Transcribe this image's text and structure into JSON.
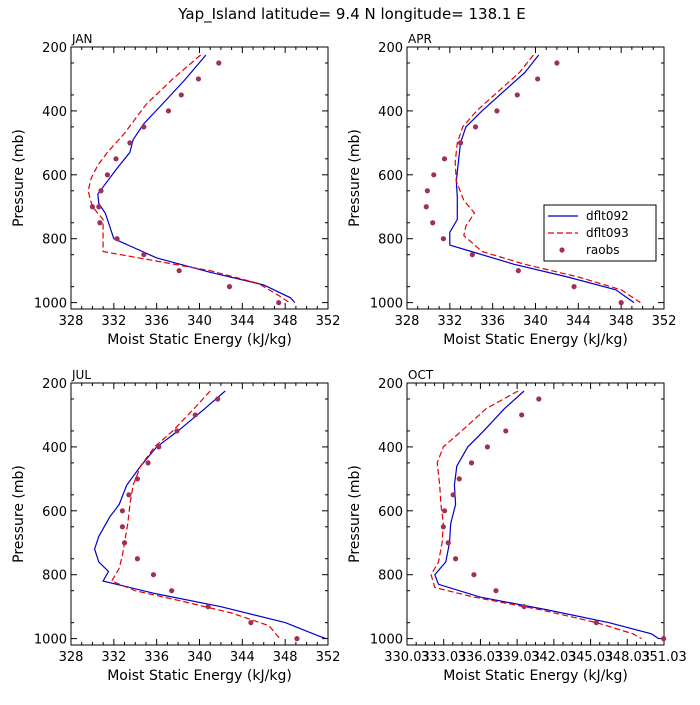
{
  "suptitle": "Yap_Island   latitude= 9.4 N longitude= 138.1 E",
  "legend": [
    {
      "label": "dflt092",
      "color": "#0000cc",
      "style": "solid"
    },
    {
      "label": "dflt093",
      "color": "#e60000",
      "style": "dashed"
    },
    {
      "label": "raobs",
      "color": "#a0305a",
      "style": "dot"
    }
  ],
  "chart_data": [
    {
      "type": "line",
      "title": "JAN",
      "xlabel": "Moist Static Energy (kJ/kg)",
      "ylabel": "Pressure (mb)",
      "xlim": [
        328,
        352
      ],
      "ylim": [
        200,
        1020
      ],
      "y_inverted": true,
      "xticks": [
        328,
        332,
        336,
        340,
        344,
        348,
        352
      ],
      "xtick_labels": [
        "328",
        "332",
        "336",
        "340",
        "344",
        "348",
        "352"
      ],
      "yticks": [
        200,
        400,
        600,
        800,
        1000
      ],
      "ytick_labels": [
        "200",
        "400",
        "600",
        "800",
        "1000"
      ],
      "series": [
        {
          "name": "dflt092",
          "x": [
            340.6,
            338.7,
            336.5,
            334.8,
            333.8,
            333.5,
            332.3,
            331.4,
            330.5,
            330.6,
            331.2,
            332.0,
            336.0,
            341.0,
            346.0,
            348.5,
            348.9
          ],
          "y": [
            225,
            300,
            380,
            440,
            490,
            530,
            580,
            620,
            660,
            690,
            720,
            800,
            860,
            905,
            945,
            985,
            1000
          ]
        },
        {
          "name": "dflt093",
          "x": [
            340.1,
            337.5,
            335.0,
            333.0,
            331.4,
            330.5,
            329.9,
            329.6,
            330.0,
            331.0,
            331.0,
            331.0,
            336.0,
            341.0,
            345.5,
            347.5,
            348.4
          ],
          "y": [
            225,
            300,
            380,
            470,
            530,
            570,
            610,
            650,
            700,
            740,
            770,
            840,
            870,
            900,
            940,
            980,
            1000
          ]
        },
        {
          "name": "raobs",
          "x": [
            341.8,
            339.9,
            338.3,
            337.1,
            334.8,
            333.5,
            332.2,
            331.4,
            330.8,
            330.6,
            330.0,
            330.7,
            332.3,
            334.8,
            338.1,
            342.8,
            347.4
          ],
          "y": [
            250,
            300,
            350,
            400,
            450,
            500,
            550,
            600,
            650,
            700,
            700,
            750,
            800,
            850,
            900,
            950,
            1000
          ]
        }
      ]
    },
    {
      "type": "line",
      "title": "APR",
      "xlabel": "Moist Static Energy (kJ/kg)",
      "ylabel": "Pressure (mb)",
      "xlim": [
        328,
        352
      ],
      "ylim": [
        200,
        1020
      ],
      "y_inverted": true,
      "xticks": [
        328,
        332,
        336,
        340,
        344,
        348,
        352
      ],
      "xtick_labels": [
        "328",
        "332",
        "336",
        "340",
        "344",
        "348",
        "352"
      ],
      "yticks": [
        200,
        400,
        600,
        800,
        1000
      ],
      "ytick_labels": [
        "200",
        "400",
        "600",
        "800",
        "1000"
      ],
      "series": [
        {
          "name": "dflt092",
          "x": [
            340.3,
            339.0,
            337.0,
            335.0,
            333.5,
            333.0,
            332.8,
            332.6,
            332.7,
            332.7,
            332.0,
            332.0,
            334.0,
            338.0,
            343.0,
            347.5,
            349.2
          ],
          "y": [
            225,
            280,
            340,
            400,
            450,
            500,
            560,
            620,
            670,
            740,
            780,
            820,
            840,
            880,
            920,
            960,
            1000
          ]
        },
        {
          "name": "dflt093",
          "x": [
            339.8,
            338.5,
            336.5,
            334.5,
            333.2,
            332.7,
            332.5,
            332.6,
            333.3,
            334.3,
            333.5,
            333.3,
            335.0,
            339.0,
            344.0,
            348.0,
            349.8
          ],
          "y": [
            225,
            280,
            340,
            400,
            450,
            500,
            560,
            620,
            680,
            720,
            760,
            790,
            840,
            880,
            920,
            960,
            1000
          ]
        },
        {
          "name": "raobs",
          "x": [
            342.0,
            340.2,
            338.3,
            336.4,
            334.4,
            333.0,
            331.5,
            330.5,
            329.9,
            329.8,
            330.4,
            331.4,
            334.1,
            338.4,
            343.6,
            348.0
          ],
          "y": [
            250,
            300,
            350,
            400,
            450,
            500,
            550,
            600,
            650,
            700,
            750,
            800,
            850,
            900,
            950,
            1000
          ]
        }
      ]
    },
    {
      "type": "line",
      "title": "JUL",
      "xlabel": "Moist Static Energy (kJ/kg)",
      "ylabel": "Pressure (mb)",
      "xlim": [
        328,
        352
      ],
      "ylim": [
        200,
        1020
      ],
      "y_inverted": true,
      "xticks": [
        328,
        332,
        336,
        340,
        344,
        348,
        352
      ],
      "xtick_labels": [
        "328",
        "332",
        "336",
        "340",
        "344",
        "348",
        "352"
      ],
      "yticks": [
        200,
        400,
        600,
        800,
        1000
      ],
      "ytick_labels": [
        "200",
        "400",
        "600",
        "800",
        "1000"
      ],
      "series": [
        {
          "name": "dflt092",
          "x": [
            342.4,
            340.5,
            338.0,
            336.0,
            334.5,
            333.2,
            332.5,
            331.6,
            330.6,
            330.2,
            330.6,
            331.5,
            331.0,
            336.0,
            342.0,
            348.0,
            351.0,
            351.8
          ],
          "y": [
            225,
            280,
            350,
            400,
            460,
            520,
            580,
            620,
            680,
            720,
            760,
            790,
            820,
            860,
            900,
            950,
            990,
            1000
          ]
        },
        {
          "name": "dflt093",
          "x": [
            341.0,
            339.5,
            337.5,
            335.8,
            334.5,
            333.8,
            333.5,
            333.3,
            333.0,
            332.8,
            332.5,
            331.8,
            334.0,
            338.0,
            343.0,
            346.5,
            347.5
          ],
          "y": [
            225,
            280,
            350,
            400,
            460,
            520,
            580,
            640,
            700,
            740,
            780,
            820,
            850,
            880,
            920,
            960,
            1000
          ]
        },
        {
          "name": "raobs",
          "x": [
            341.7,
            339.6,
            337.9,
            336.2,
            335.2,
            334.2,
            333.4,
            332.8,
            332.8,
            333.0,
            334.2,
            335.7,
            337.4,
            340.8,
            344.8,
            349.1
          ],
          "y": [
            250,
            300,
            350,
            400,
            450,
            500,
            550,
            600,
            650,
            700,
            750,
            800,
            850,
            900,
            950,
            1000
          ]
        }
      ]
    },
    {
      "type": "line",
      "title": "OCT",
      "xlabel": "Moist Static Energy (kJ/kg)",
      "ylabel": "Pressure (mb)",
      "xlim": [
        330.03,
        351.03
      ],
      "ylim": [
        200,
        1020
      ],
      "y_inverted": true,
      "xticks": [
        330.03,
        333.03,
        336.03,
        339.03,
        342.03,
        345.03,
        348.03,
        351.03
      ],
      "xtick_labels": [
        "330.03",
        "333.03",
        "336.03",
        "339.03",
        "342.03",
        "345.03",
        "348.03",
        "351.03"
      ],
      "yticks": [
        200,
        400,
        600,
        800,
        1000
      ],
      "ytick_labels": [
        "200",
        "400",
        "600",
        "800",
        "1000"
      ],
      "series": [
        {
          "name": "dflt092",
          "x": [
            339.6,
            338.0,
            336.3,
            335.0,
            334.1,
            333.9,
            334.0,
            333.6,
            333.5,
            333.2,
            332.3,
            332.6,
            336.0,
            341.5,
            346.5,
            350.0,
            350.6
          ],
          "y": [
            225,
            280,
            350,
            400,
            460,
            520,
            580,
            640,
            700,
            760,
            800,
            830,
            870,
            910,
            950,
            985,
            1000
          ]
        },
        {
          "name": "dflt093",
          "x": [
            339.1,
            336.5,
            334.5,
            333.0,
            332.5,
            332.7,
            332.8,
            333.0,
            332.9,
            332.6,
            332.0,
            332.3,
            335.5,
            341.0,
            345.5,
            348.5,
            349.2
          ],
          "y": [
            225,
            280,
            350,
            400,
            450,
            520,
            580,
            640,
            700,
            760,
            800,
            840,
            870,
            910,
            950,
            985,
            1000
          ]
        },
        {
          "name": "raobs",
          "x": [
            340.8,
            339.4,
            338.1,
            336.6,
            335.3,
            334.3,
            333.8,
            333.1,
            333.0,
            333.4,
            334.0,
            335.5,
            337.3,
            339.6,
            345.5,
            351.0
          ],
          "y": [
            250,
            300,
            350,
            400,
            450,
            500,
            550,
            600,
            650,
            700,
            750,
            800,
            850,
            900,
            950,
            1000
          ]
        }
      ]
    }
  ]
}
